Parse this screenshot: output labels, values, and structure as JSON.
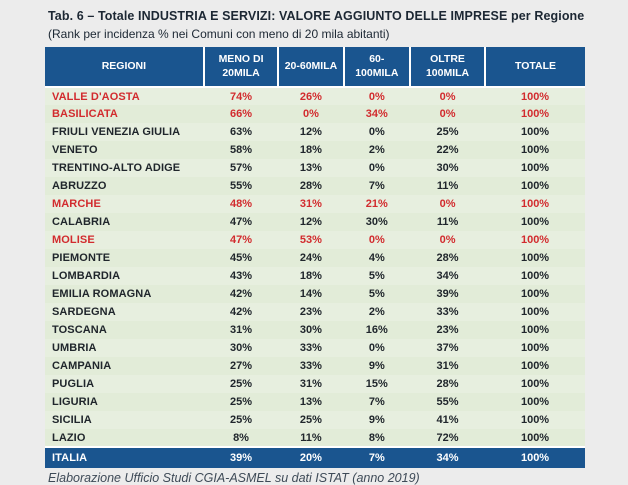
{
  "title": "Tab. 6 – Totale INDUSTRIA E SERVIZI: VALORE AGGIUNTO DELLE IMPRESE per Regione",
  "subtitle": "(Rank per incidenza % nei Comuni con meno di 20 mila abitanti)",
  "footer": "Elaborazione  Ufficio Studi CGIA-ASMEL  su dati ISTAT (anno 2019)",
  "colors": {
    "header_bg": "#1a558f",
    "highlight_red": "#d22b2e",
    "row_bg": "#e7efdf",
    "page_bg": "#ececec"
  },
  "chart_data": {
    "type": "table",
    "columns": [
      "REGIONI",
      "MENO DI 20MILA",
      "20-60MILA",
      "60-100MILA",
      "OLTRE 100MILA",
      "TOTALE"
    ],
    "rows": [
      {
        "region": "VALLE D'AOSTA",
        "values": [
          "74%",
          "26%",
          "0%",
          "0%",
          "100%"
        ],
        "highlight": true,
        "total": false
      },
      {
        "region": "BASILICATA",
        "values": [
          "66%",
          "0%",
          "34%",
          "0%",
          "100%"
        ],
        "highlight": true,
        "total": false
      },
      {
        "region": "FRIULI VENEZIA GIULIA",
        "values": [
          "63%",
          "12%",
          "0%",
          "25%",
          "100%"
        ],
        "highlight": false,
        "total": false
      },
      {
        "region": "VENETO",
        "values": [
          "58%",
          "18%",
          "2%",
          "22%",
          "100%"
        ],
        "highlight": false,
        "total": false
      },
      {
        "region": "TRENTINO-ALTO ADIGE",
        "values": [
          "57%",
          "13%",
          "0%",
          "30%",
          "100%"
        ],
        "highlight": false,
        "total": false
      },
      {
        "region": "ABRUZZO",
        "values": [
          "55%",
          "28%",
          "7%",
          "11%",
          "100%"
        ],
        "highlight": false,
        "total": false
      },
      {
        "region": "MARCHE",
        "values": [
          "48%",
          "31%",
          "21%",
          "0%",
          "100%"
        ],
        "highlight": true,
        "total": false
      },
      {
        "region": "CALABRIA",
        "values": [
          "47%",
          "12%",
          "30%",
          "11%",
          "100%"
        ],
        "highlight": false,
        "total": false
      },
      {
        "region": "MOLISE",
        "values": [
          "47%",
          "53%",
          "0%",
          "0%",
          "100%"
        ],
        "highlight": true,
        "total": false
      },
      {
        "region": "PIEMONTE",
        "values": [
          "45%",
          "24%",
          "4%",
          "28%",
          "100%"
        ],
        "highlight": false,
        "total": false
      },
      {
        "region": "LOMBARDIA",
        "values": [
          "43%",
          "18%",
          "5%",
          "34%",
          "100%"
        ],
        "highlight": false,
        "total": false
      },
      {
        "region": "EMILIA ROMAGNA",
        "values": [
          "42%",
          "14%",
          "5%",
          "39%",
          "100%"
        ],
        "highlight": false,
        "total": false
      },
      {
        "region": "SARDEGNA",
        "values": [
          "42%",
          "23%",
          "2%",
          "33%",
          "100%"
        ],
        "highlight": false,
        "total": false
      },
      {
        "region": "TOSCANA",
        "values": [
          "31%",
          "30%",
          "16%",
          "23%",
          "100%"
        ],
        "highlight": false,
        "total": false
      },
      {
        "region": "UMBRIA",
        "values": [
          "30%",
          "33%",
          "0%",
          "37%",
          "100%"
        ],
        "highlight": false,
        "total": false
      },
      {
        "region": "CAMPANIA",
        "values": [
          "27%",
          "33%",
          "9%",
          "31%",
          "100%"
        ],
        "highlight": false,
        "total": false
      },
      {
        "region": "PUGLIA",
        "values": [
          "25%",
          "31%",
          "15%",
          "28%",
          "100%"
        ],
        "highlight": false,
        "total": false
      },
      {
        "region": "LIGURIA",
        "values": [
          "25%",
          "13%",
          "7%",
          "55%",
          "100%"
        ],
        "highlight": false,
        "total": false
      },
      {
        "region": "SICILIA",
        "values": [
          "25%",
          "25%",
          "9%",
          "41%",
          "100%"
        ],
        "highlight": false,
        "total": false
      },
      {
        "region": "LAZIO",
        "values": [
          "8%",
          "11%",
          "8%",
          "72%",
          "100%"
        ],
        "highlight": false,
        "total": false
      },
      {
        "region": "ITALIA",
        "values": [
          "39%",
          "20%",
          "7%",
          "34%",
          "100%"
        ],
        "highlight": false,
        "total": true
      }
    ]
  }
}
